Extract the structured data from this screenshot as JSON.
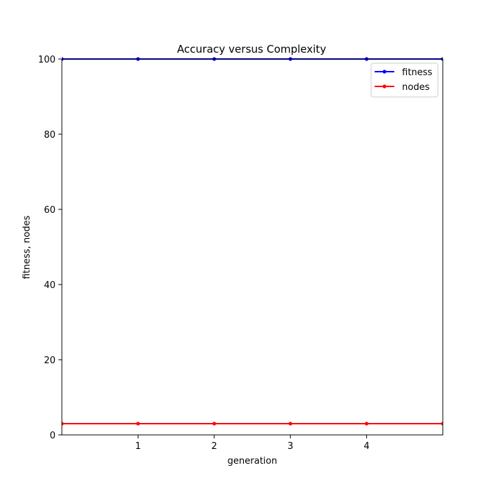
{
  "chart_data": {
    "type": "line",
    "title": "Accuracy versus Complexity",
    "xlabel": "generation",
    "ylabel": "fitness, nodes",
    "xlim": [
      0,
      5
    ],
    "ylim": [
      0,
      100
    ],
    "xticks": [
      1,
      2,
      3,
      4
    ],
    "yticks": [
      0,
      20,
      40,
      60,
      80,
      100
    ],
    "grid": false,
    "legend_position": "top-right",
    "x": [
      0,
      1,
      2,
      3,
      4,
      5
    ],
    "series": [
      {
        "name": "fitness",
        "color": "#0000ff",
        "values": [
          100,
          100,
          100,
          100,
          100,
          100
        ]
      },
      {
        "name": "nodes",
        "color": "#ff0000",
        "values": [
          3,
          3,
          3,
          3,
          3,
          3
        ]
      }
    ]
  }
}
